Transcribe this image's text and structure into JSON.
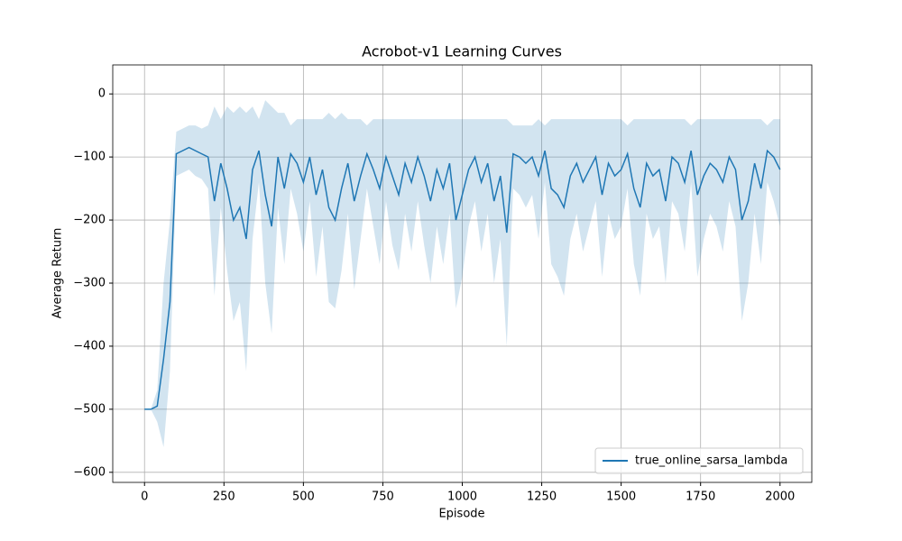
{
  "chart_data": {
    "type": "line",
    "title": "Acrobot-v1 Learning Curves",
    "xlabel": "Episode",
    "ylabel": "Average Return",
    "x": [
      0,
      20,
      40,
      60,
      80,
      100,
      120,
      140,
      160,
      180,
      200,
      220,
      240,
      260,
      280,
      300,
      320,
      340,
      360,
      380,
      400,
      420,
      440,
      460,
      480,
      500,
      520,
      540,
      560,
      580,
      600,
      620,
      640,
      660,
      680,
      700,
      720,
      740,
      760,
      780,
      800,
      820,
      840,
      860,
      880,
      900,
      920,
      940,
      960,
      980,
      1000,
      1020,
      1040,
      1060,
      1080,
      1100,
      1120,
      1140,
      1160,
      1180,
      1200,
      1220,
      1240,
      1260,
      1280,
      1300,
      1320,
      1340,
      1360,
      1380,
      1400,
      1420,
      1440,
      1460,
      1480,
      1500,
      1520,
      1540,
      1560,
      1580,
      1600,
      1620,
      1640,
      1660,
      1680,
      1700,
      1720,
      1740,
      1760,
      1780,
      1800,
      1820,
      1840,
      1860,
      1880,
      1900,
      1920,
      1940,
      1960,
      1980,
      2000
    ],
    "series": [
      {
        "name": "true_online_sarsa_lambda",
        "color": "#1f77b4",
        "values": [
          -500,
          -500,
          -495,
          -420,
          -330,
          -95,
          -90,
          -85,
          -90,
          -95,
          -100,
          -170,
          -110,
          -150,
          -200,
          -180,
          -230,
          -120,
          -90,
          -160,
          -210,
          -100,
          -150,
          -95,
          -110,
          -140,
          -100,
          -160,
          -120,
          -180,
          -200,
          -150,
          -110,
          -170,
          -130,
          -95,
          -120,
          -150,
          -100,
          -130,
          -160,
          -110,
          -140,
          -100,
          -130,
          -170,
          -120,
          -150,
          -110,
          -200,
          -160,
          -120,
          -100,
          -140,
          -110,
          -170,
          -130,
          -220,
          -95,
          -100,
          -110,
          -100,
          -130,
          -90,
          -150,
          -160,
          -180,
          -130,
          -110,
          -140,
          -120,
          -100,
          -160,
          -110,
          -130,
          -120,
          -95,
          -150,
          -180,
          -110,
          -130,
          -120,
          -170,
          -100,
          -110,
          -140,
          -90,
          -160,
          -130,
          -110,
          -120,
          -140,
          -100,
          -120,
          -200,
          -170,
          -110,
          -150,
          -90,
          -100,
          -120
        ],
        "lower": [
          -500,
          -500,
          -520,
          -560,
          -440,
          -130,
          -125,
          -120,
          -130,
          -135,
          -150,
          -320,
          -180,
          -280,
          -360,
          -330,
          -440,
          -230,
          -140,
          -300,
          -380,
          -180,
          -270,
          -150,
          -190,
          -250,
          -170,
          -290,
          -210,
          -330,
          -340,
          -280,
          -190,
          -310,
          -230,
          -150,
          -210,
          -270,
          -170,
          -240,
          -280,
          -190,
          -250,
          -170,
          -240,
          -300,
          -210,
          -270,
          -190,
          -340,
          -290,
          -210,
          -170,
          -250,
          -190,
          -300,
          -230,
          -400,
          -150,
          -160,
          -180,
          -160,
          -230,
          -140,
          -270,
          -290,
          -320,
          -230,
          -190,
          -250,
          -210,
          -170,
          -290,
          -190,
          -230,
          -210,
          -150,
          -270,
          -320,
          -190,
          -230,
          -210,
          -300,
          -170,
          -190,
          -250,
          -140,
          -290,
          -230,
          -190,
          -210,
          -250,
          -170,
          -210,
          -360,
          -300,
          -190,
          -270,
          -140,
          -170,
          -210
        ],
        "upper": [
          -500,
          -500,
          -470,
          -300,
          -200,
          -60,
          -55,
          -50,
          -50,
          -55,
          -50,
          -20,
          -40,
          -20,
          -30,
          -20,
          -30,
          -20,
          -40,
          -10,
          -20,
          -30,
          -30,
          -50,
          -40,
          -40,
          -40,
          -40,
          -40,
          -30,
          -40,
          -30,
          -40,
          -40,
          -40,
          -50,
          -40,
          -40,
          -40,
          -40,
          -40,
          -40,
          -40,
          -40,
          -40,
          -40,
          -40,
          -40,
          -40,
          -40,
          -40,
          -40,
          -40,
          -40,
          -40,
          -40,
          -40,
          -40,
          -50,
          -50,
          -50,
          -50,
          -40,
          -50,
          -40,
          -40,
          -40,
          -40,
          -40,
          -40,
          -40,
          -40,
          -40,
          -40,
          -40,
          -40,
          -50,
          -40,
          -40,
          -40,
          -40,
          -40,
          -40,
          -40,
          -40,
          -40,
          -50,
          -40,
          -40,
          -40,
          -40,
          -40,
          -40,
          -40,
          -40,
          -40,
          -40,
          -40,
          -50,
          -40,
          -40
        ]
      }
    ],
    "xlim": [
      -100,
      2100
    ],
    "ylim": [
      -616,
      46
    ],
    "xticks": [
      0,
      250,
      500,
      750,
      1000,
      1250,
      1500,
      1750,
      2000
    ],
    "yticks": [
      {
        "value": -600,
        "label": "−600"
      },
      {
        "value": -500,
        "label": "−500"
      },
      {
        "value": -400,
        "label": "−400"
      },
      {
        "value": -300,
        "label": "−300"
      },
      {
        "value": -200,
        "label": "−200"
      },
      {
        "value": -100,
        "label": "−100"
      },
      0
    ],
    "grid": true,
    "legend": "lower right"
  }
}
